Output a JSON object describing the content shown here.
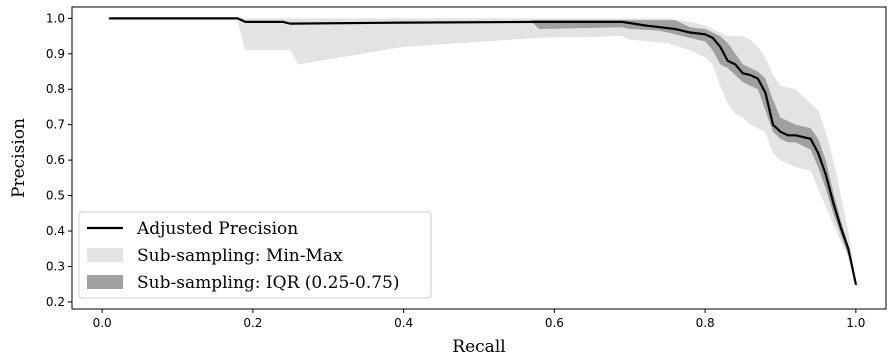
{
  "chart_data": {
    "type": "line",
    "title": "",
    "xlabel": "Recall",
    "ylabel": "Precision",
    "xlim": [
      -0.04,
      1.04
    ],
    "ylim": [
      0.18,
      1.032
    ],
    "xticks": [
      0.0,
      0.2,
      0.4,
      0.6,
      0.8,
      1.0
    ],
    "xtick_labels": [
      "0.0",
      "0.2",
      "0.4",
      "0.6",
      "0.8",
      "1.0"
    ],
    "yticks": [
      0.2,
      0.3,
      0.4,
      0.5,
      0.6,
      0.7,
      0.8,
      0.9,
      1.0
    ],
    "ytick_labels": [
      "0.2",
      "0.3",
      "0.4",
      "0.5",
      "0.6",
      "0.7",
      "0.8",
      "0.9",
      "1.0"
    ],
    "grid": false,
    "legend_position": "lower-left",
    "series": [
      {
        "name": "Adjusted Precision",
        "kind": "line",
        "color": "#000000",
        "x": [
          0.01,
          0.18,
          0.19,
          0.24,
          0.25,
          0.4,
          0.58,
          0.69,
          0.72,
          0.74,
          0.76,
          0.78,
          0.8,
          0.81,
          0.82,
          0.83,
          0.84,
          0.85,
          0.86,
          0.87,
          0.88,
          0.89,
          0.9,
          0.91,
          0.92,
          0.94,
          0.95,
          0.96,
          0.97,
          0.98,
          0.99,
          1.0
        ],
        "y": [
          1.0,
          1.0,
          0.99,
          0.99,
          0.985,
          0.988,
          0.99,
          0.99,
          0.98,
          0.975,
          0.97,
          0.96,
          0.955,
          0.945,
          0.92,
          0.88,
          0.87,
          0.845,
          0.84,
          0.83,
          0.79,
          0.7,
          0.68,
          0.67,
          0.67,
          0.66,
          0.62,
          0.56,
          0.48,
          0.41,
          0.35,
          0.25
        ]
      },
      {
        "name": "Sub-sampling: Min-Max",
        "kind": "band",
        "color": "#e3e3e3",
        "x": [
          0.18,
          0.19,
          0.25,
          0.26,
          0.4,
          0.58,
          0.69,
          0.7,
          0.75,
          0.78,
          0.8,
          0.81,
          0.82,
          0.83,
          0.84,
          0.85,
          0.86,
          0.87,
          0.88,
          0.89,
          0.9,
          0.92,
          0.94,
          0.95,
          0.96,
          0.97,
          0.98,
          0.99,
          1.0
        ],
        "lower": [
          0.99,
          0.91,
          0.91,
          0.87,
          0.92,
          0.945,
          0.95,
          0.94,
          0.93,
          0.91,
          0.89,
          0.87,
          0.81,
          0.76,
          0.73,
          0.72,
          0.7,
          0.69,
          0.68,
          0.62,
          0.6,
          0.58,
          0.57,
          0.52,
          0.47,
          0.42,
          0.37,
          0.33,
          0.25
        ],
        "upper": [
          1.0,
          1.0,
          1.0,
          1.0,
          1.0,
          1.0,
          1.0,
          1.0,
          1.0,
          0.99,
          0.98,
          0.97,
          0.96,
          0.95,
          0.95,
          0.95,
          0.94,
          0.92,
          0.89,
          0.84,
          0.81,
          0.8,
          0.76,
          0.74,
          0.68,
          0.6,
          0.5,
          0.4,
          0.25
        ]
      },
      {
        "name": "Sub-sampling: IQR (0.25-0.75)",
        "kind": "band",
        "color": "#a0a0a0",
        "x": [
          0.57,
          0.58,
          0.69,
          0.7,
          0.74,
          0.76,
          0.78,
          0.8,
          0.81,
          0.82,
          0.83,
          0.84,
          0.85,
          0.86,
          0.87,
          0.88,
          0.89,
          0.9,
          0.91,
          0.92,
          0.94,
          0.95,
          0.96,
          0.97,
          0.98,
          0.99,
          1.0
        ],
        "lower": [
          0.99,
          0.97,
          0.975,
          0.97,
          0.965,
          0.955,
          0.945,
          0.935,
          0.91,
          0.87,
          0.86,
          0.84,
          0.82,
          0.81,
          0.8,
          0.74,
          0.68,
          0.66,
          0.65,
          0.65,
          0.63,
          0.58,
          0.52,
          0.45,
          0.39,
          0.33,
          0.25
        ],
        "upper": [
          0.995,
          0.995,
          0.995,
          0.995,
          0.995,
          0.995,
          0.975,
          0.97,
          0.96,
          0.95,
          0.93,
          0.9,
          0.87,
          0.86,
          0.85,
          0.83,
          0.77,
          0.72,
          0.71,
          0.7,
          0.69,
          0.66,
          0.6,
          0.51,
          0.43,
          0.36,
          0.25
        ]
      }
    ]
  }
}
